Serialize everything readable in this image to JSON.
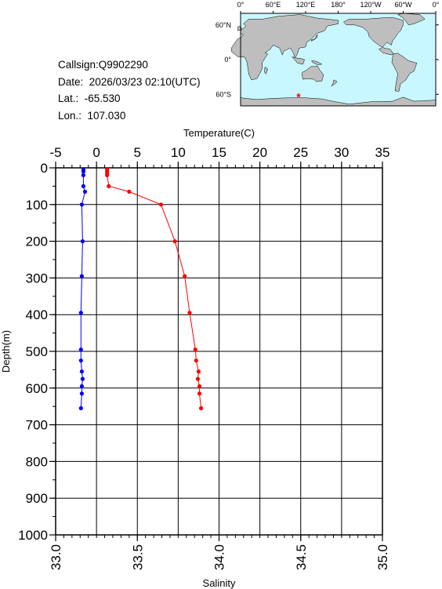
{
  "info": {
    "callsign": "Callsign:Q9902290",
    "date": "Date:  2026/03/23 02:10(UTC)",
    "lat": "Lat.:  -65.530",
    "lon": "Lon.:  107.030"
  },
  "map": {
    "top_labels": [
      "0°",
      "60°E",
      "120°E",
      "180°",
      "120°W",
      "60°W",
      "0°"
    ],
    "lat_labels": [
      "60°N",
      "0°",
      "60°S"
    ],
    "station": {
      "lon": 107.03,
      "lat": -65.53
    },
    "colors": {
      "ocean": "#c8f7ff",
      "land": "#bebebe",
      "marker": "#ff0000"
    }
  },
  "chart_data": {
    "type": "line",
    "ylabel": "Depth(m)",
    "ylim": [
      1000,
      0
    ],
    "yticks": [
      "0",
      "100",
      "200",
      "300",
      "400",
      "500",
      "600",
      "700",
      "800",
      "900",
      "1000"
    ],
    "top_axis": {
      "label": "Temperature(C)",
      "lim": [
        -5,
        35
      ],
      "ticks": [
        "-5",
        "0",
        "5",
        "10",
        "15",
        "20",
        "25",
        "30",
        "35"
      ]
    },
    "bottom_axis": {
      "label": "Salinity",
      "lim": [
        33.0,
        35.0
      ],
      "ticks": [
        "33.0",
        "33.5",
        "34.0",
        "34.5",
        "35.0"
      ]
    },
    "grid": true,
    "series": [
      {
        "axis": "temperature",
        "color": "#ff0000",
        "depth": [
          5,
          10,
          15,
          20,
          50,
          65,
          100,
          200,
          295,
          395,
          495,
          525,
          555,
          575,
          595,
          615,
          655
        ],
        "values": [
          1.3,
          1.3,
          1.3,
          1.3,
          1.5,
          4.0,
          7.9,
          9.6,
          10.8,
          11.4,
          12.1,
          12.2,
          12.5,
          12.4,
          12.6,
          12.6,
          12.8
        ]
      },
      {
        "axis": "salinity",
        "color": "#0000ff",
        "depth": [
          5,
          10,
          20,
          50,
          65,
          100,
          200,
          295,
          395,
          495,
          525,
          555,
          575,
          595,
          615,
          655
        ],
        "values": [
          33.17,
          33.17,
          33.17,
          33.17,
          33.18,
          33.16,
          33.165,
          33.16,
          33.155,
          33.155,
          33.155,
          33.16,
          33.165,
          33.16,
          33.16,
          33.155
        ]
      }
    ]
  }
}
